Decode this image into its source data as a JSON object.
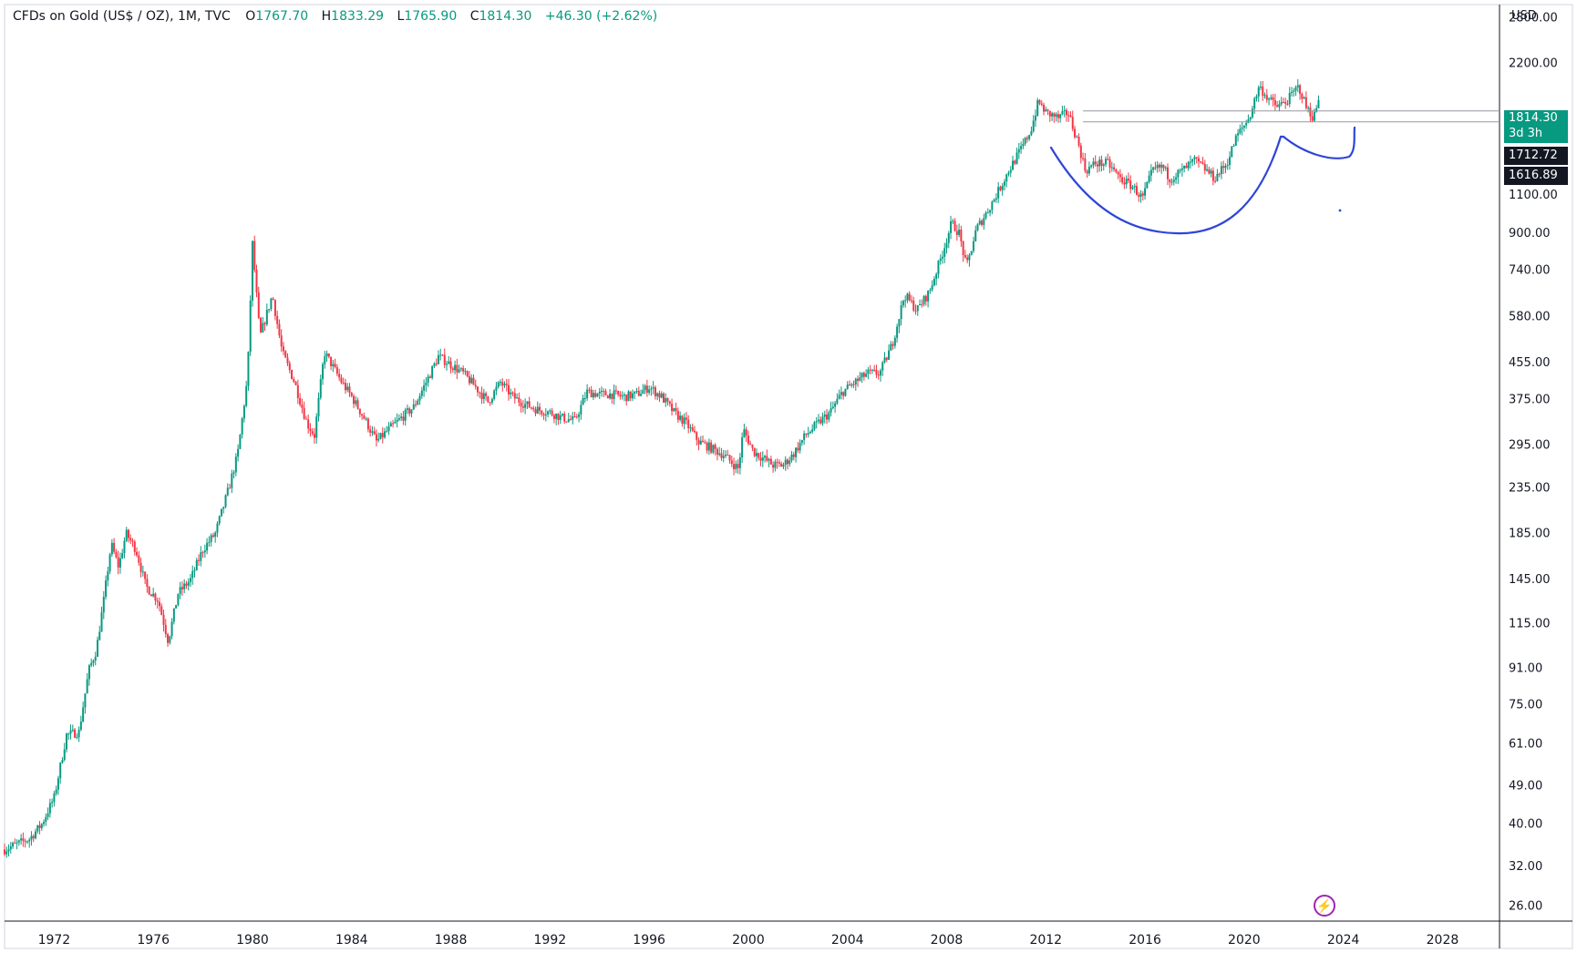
{
  "header": {
    "symbol": "CFDs on Gold (US$ / OZ)",
    "interval": "1M",
    "source": "TVC",
    "open_label": "O",
    "open": "1767.70",
    "high_label": "H",
    "high": "1833.29",
    "low_label": "L",
    "low": "1765.90",
    "close_label": "C",
    "close": "1814.30",
    "change": "+46.30 (+2.62%)"
  },
  "axis": {
    "currency": "USD"
  },
  "price_tags": {
    "last_price": "1814.30",
    "countdown": "3d 3h",
    "level_1": "1712.72",
    "level_2": "1616.89"
  },
  "colors": {
    "up": "#089981",
    "down": "#f23645",
    "annotation": "#2f45d8",
    "tag_bg": "#089981",
    "level_bg": "#131722",
    "lightning": "#9c27b0"
  },
  "icons": {
    "lightning": "lightning-icon"
  },
  "chart_data": {
    "type": "candlestick",
    "scale": "log",
    "x_ticks": [
      "1972",
      "1976",
      "1980",
      "1984",
      "1988",
      "1992",
      "1996",
      "2000",
      "2004",
      "2008",
      "2012",
      "2016",
      "2020",
      "2024",
      "2028"
    ],
    "y_ticks": [
      "2800.00",
      "2200.00",
      "1100.00",
      "900.00",
      "740.00",
      "580.00",
      "455.00",
      "375.00",
      "295.00",
      "235.00",
      "185.00",
      "145.00",
      "115.00",
      "91.00",
      "75.00",
      "61.00",
      "49.00",
      "40.00",
      "32.00",
      "26.00"
    ],
    "ylim": [
      24,
      3000
    ],
    "xlim": [
      1970.0,
      2030.3
    ],
    "series": [
      {
        "points": [
          [
            1970.0,
            35
          ],
          [
            1970.5,
            36
          ],
          [
            1971.0,
            37
          ],
          [
            1971.5,
            40
          ],
          [
            1972.0,
            46
          ],
          [
            1972.5,
            64
          ],
          [
            1973.0,
            65
          ],
          [
            1973.4,
            90
          ],
          [
            1973.7,
            100
          ],
          [
            1974.0,
            130
          ],
          [
            1974.3,
            175
          ],
          [
            1974.6,
            155
          ],
          [
            1974.9,
            185
          ],
          [
            1975.3,
            170
          ],
          [
            1975.7,
            140
          ],
          [
            1976.2,
            130
          ],
          [
            1976.6,
            105
          ],
          [
            1977.0,
            135
          ],
          [
            1977.5,
            145
          ],
          [
            1978.0,
            170
          ],
          [
            1978.5,
            185
          ],
          [
            1979.0,
            230
          ],
          [
            1979.4,
            280
          ],
          [
            1979.8,
            420
          ],
          [
            1980.0,
            850
          ],
          [
            1980.3,
            520
          ],
          [
            1980.8,
            650
          ],
          [
            1981.2,
            480
          ],
          [
            1981.7,
            410
          ],
          [
            1982.2,
            330
          ],
          [
            1982.5,
            310
          ],
          [
            1982.9,
            480
          ],
          [
            1983.2,
            450
          ],
          [
            1983.6,
            410
          ],
          [
            1984.0,
            380
          ],
          [
            1984.5,
            340
          ],
          [
            1985.0,
            300
          ],
          [
            1985.5,
            320
          ],
          [
            1986.0,
            340
          ],
          [
            1986.5,
            360
          ],
          [
            1987.0,
            410
          ],
          [
            1987.5,
            470
          ],
          [
            1988.0,
            450
          ],
          [
            1988.5,
            430
          ],
          [
            1989.0,
            400
          ],
          [
            1989.5,
            370
          ],
          [
            1990.0,
            410
          ],
          [
            1990.5,
            380
          ],
          [
            1991.0,
            365
          ],
          [
            1991.5,
            355
          ],
          [
            1992.0,
            350
          ],
          [
            1992.5,
            340
          ],
          [
            1993.0,
            335
          ],
          [
            1993.5,
            390
          ],
          [
            1994.0,
            385
          ],
          [
            1994.5,
            385
          ],
          [
            1995.0,
            380
          ],
          [
            1995.5,
            385
          ],
          [
            1996.0,
            400
          ],
          [
            1996.5,
            380
          ],
          [
            1997.0,
            350
          ],
          [
            1997.5,
            330
          ],
          [
            1998.0,
            300
          ],
          [
            1998.5,
            290
          ],
          [
            1999.0,
            280
          ],
          [
            1999.6,
            260
          ],
          [
            1999.8,
            320
          ],
          [
            2000.2,
            285
          ],
          [
            2000.6,
            275
          ],
          [
            2001.0,
            265
          ],
          [
            2001.4,
            265
          ],
          [
            2001.8,
            280
          ],
          [
            2002.3,
            310
          ],
          [
            2002.8,
            330
          ],
          [
            2003.3,
            350
          ],
          [
            2003.8,
            390
          ],
          [
            2004.3,
            410
          ],
          [
            2004.8,
            430
          ],
          [
            2005.3,
            430
          ],
          [
            2005.8,
            500
          ],
          [
            2006.3,
            650
          ],
          [
            2006.8,
            600
          ],
          [
            2007.3,
            660
          ],
          [
            2007.8,
            800
          ],
          [
            2008.2,
            950
          ],
          [
            2008.5,
            900
          ],
          [
            2008.8,
            750
          ],
          [
            2009.2,
            920
          ],
          [
            2009.6,
            1000
          ],
          [
            2010.0,
            1100
          ],
          [
            2010.5,
            1250
          ],
          [
            2011.0,
            1400
          ],
          [
            2011.4,
            1550
          ],
          [
            2011.7,
            1800
          ],
          [
            2012.0,
            1700
          ],
          [
            2012.5,
            1650
          ],
          [
            2012.9,
            1700
          ],
          [
            2013.3,
            1450
          ],
          [
            2013.6,
            1250
          ],
          [
            2014.0,
            1300
          ],
          [
            2014.5,
            1300
          ],
          [
            2015.0,
            1200
          ],
          [
            2015.5,
            1150
          ],
          [
            2015.9,
            1080
          ],
          [
            2016.3,
            1250
          ],
          [
            2016.7,
            1280
          ],
          [
            2017.0,
            1200
          ],
          [
            2017.5,
            1250
          ],
          [
            2018.0,
            1320
          ],
          [
            2018.5,
            1250
          ],
          [
            2018.8,
            1200
          ],
          [
            2019.3,
            1300
          ],
          [
            2019.7,
            1500
          ],
          [
            2020.2,
            1650
          ],
          [
            2020.6,
            1950
          ],
          [
            2020.9,
            1850
          ],
          [
            2021.3,
            1750
          ],
          [
            2021.7,
            1800
          ],
          [
            2022.2,
            1950
          ],
          [
            2022.5,
            1750
          ],
          [
            2022.8,
            1650
          ],
          [
            2023.0,
            1814
          ]
        ]
      }
    ]
  }
}
